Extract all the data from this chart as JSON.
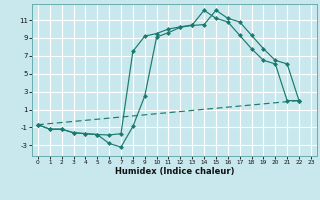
{
  "background_color": "#c8e8ee",
  "grid_color": "#ffffff",
  "line_color": "#1a7a6e",
  "xlabel": "Humidex (Indice chaleur)",
  "xlim": [
    -0.5,
    23.5
  ],
  "ylim": [
    -4.2,
    12.8
  ],
  "yticks": [
    -3,
    -1,
    1,
    3,
    5,
    7,
    9,
    11
  ],
  "xticks": [
    0,
    1,
    2,
    3,
    4,
    5,
    6,
    7,
    8,
    9,
    10,
    11,
    12,
    13,
    14,
    15,
    16,
    17,
    18,
    19,
    20,
    21,
    22,
    23
  ],
  "curve1_x": [
    0,
    1,
    2,
    3,
    4,
    5,
    6,
    7,
    8,
    9,
    10,
    11,
    12,
    13,
    14,
    15,
    16,
    17,
    18,
    19,
    20,
    21,
    22
  ],
  "curve1_y": [
    -0.7,
    -1.2,
    -1.2,
    -1.6,
    -1.7,
    -1.8,
    -2.8,
    -3.2,
    -0.9,
    2.5,
    9.1,
    9.6,
    10.2,
    10.4,
    10.5,
    12.1,
    11.2,
    10.8,
    9.3,
    7.8,
    6.5,
    6.1,
    2.0
  ],
  "curve2_x": [
    0,
    1,
    2,
    3,
    4,
    5,
    6,
    7,
    8,
    9,
    10,
    11,
    12,
    13,
    14,
    15,
    16,
    17,
    18,
    19,
    20,
    21,
    22
  ],
  "curve2_y": [
    -0.7,
    -1.2,
    -1.2,
    -1.6,
    -1.7,
    -1.8,
    -1.85,
    -1.7,
    7.5,
    9.2,
    9.5,
    10.0,
    10.25,
    10.45,
    12.1,
    11.2,
    10.8,
    9.3,
    7.8,
    6.5,
    6.1,
    2.0,
    2.0
  ],
  "curve3_x": [
    0,
    22
  ],
  "curve3_y": [
    -0.7,
    2.0
  ]
}
